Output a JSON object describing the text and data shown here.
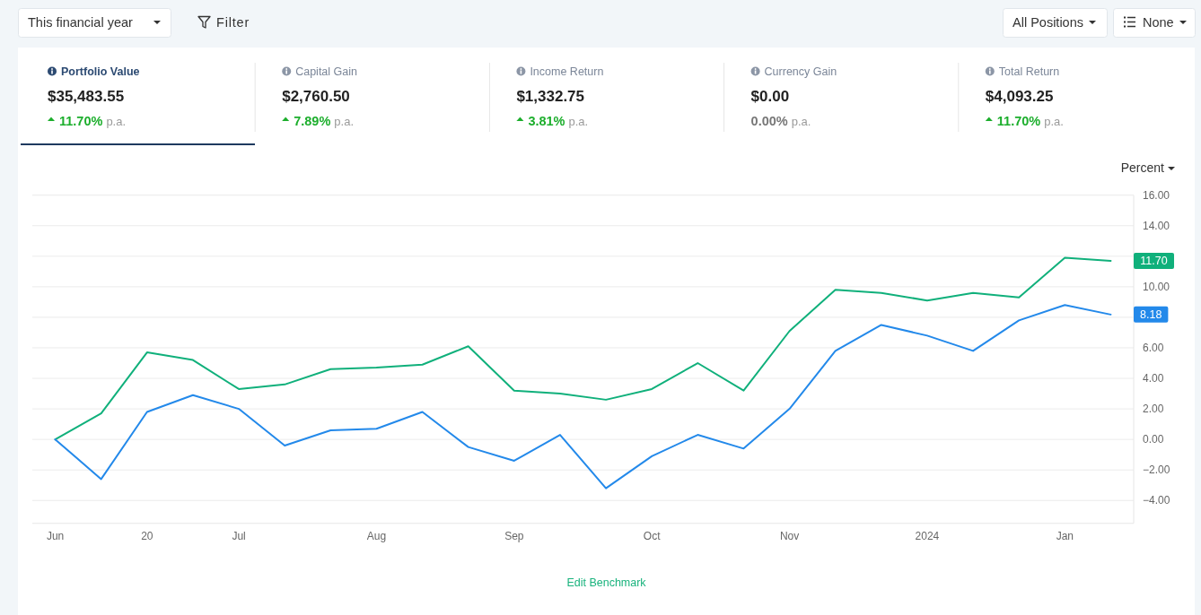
{
  "chart_data": [
    {
      "type": "other",
      "annotations": [
        "This financial year",
        "Filter",
        "All Positions",
        "None"
      ]
    },
    {
      "type": "other",
      "title": "Portfolio Value",
      "annotations": [
        "$35,483.55",
        "11.70%",
        "p.a."
      ],
      "color": "#1cae2c"
    },
    {
      "type": "other",
      "title": "Capital Gain",
      "annotations": [
        "$2,760.50",
        "7.89%",
        "p.a."
      ],
      "color": "#1cae2c"
    },
    {
      "type": "other",
      "title": "Income Return",
      "annotations": [
        "$1,332.75",
        "3.81%",
        "p.a."
      ],
      "color": "#1cae2c"
    },
    {
      "type": "other",
      "title": "Currency Gain",
      "annotations": [
        "$0.00",
        "0.00%",
        "p.a."
      ]
    },
    {
      "type": "other",
      "title": "Total Return",
      "annotations": [
        "$4,093.25",
        "11.70%",
        "p.a."
      ],
      "color": "#1cae2c"
    },
    {
      "type": "line",
      "categories": [
        "Jun",
        null,
        "20",
        null,
        "Jul",
        null,
        null,
        "Aug",
        null,
        null,
        "Sep",
        null,
        null,
        "Oct",
        null,
        null,
        "Nov",
        null,
        null,
        "2024",
        null,
        null,
        "Jan",
        null
      ],
      "series": [
        {
          "color": "#10b07b",
          "values": [
            0,
            1.7,
            5.7,
            5.2,
            3.3,
            3.6,
            4.6,
            4.7,
            4.9,
            6.1,
            3.2,
            3.0,
            2.6,
            3.3,
            5.0,
            3.2,
            7.1,
            9.8,
            9.6,
            9.1,
            9.6,
            9.3,
            11.9,
            11.7
          ]
        },
        {
          "color": "#2389ea",
          "values": [
            0,
            -2.6,
            1.8,
            2.9,
            2.0,
            -0.4,
            0.6,
            0.7,
            1.8,
            -0.5,
            -1.4,
            0.3,
            -3.2,
            -1.1,
            0.3,
            -0.6,
            2.0,
            5.8,
            7.5,
            6.8,
            5.8,
            7.8,
            8.8,
            8.18
          ]
        }
      ],
      "ylim": [
        -5.5,
        16
      ],
      "yticks": [
        {
          "value": -4,
          "label": "−4.00"
        },
        {
          "value": -2,
          "label": "−2.00"
        },
        {
          "value": 0,
          "label": "0.00"
        },
        {
          "value": 2,
          "label": "2.00"
        },
        {
          "value": 4,
          "label": "4.00"
        },
        {
          "value": 6,
          "label": "6.00"
        },
        {
          "value": 8,
          "label": null
        },
        {
          "value": 10,
          "label": "10.00"
        },
        {
          "value": 12,
          "label": null
        },
        {
          "value": 14,
          "label": "14.00"
        },
        {
          "value": 16,
          "label": "16.00"
        }
      ],
      "grid": "y",
      "annotations": [
        "Percent",
        "Edit Benchmark",
        "11.70",
        "8.18"
      ]
    }
  ]
}
